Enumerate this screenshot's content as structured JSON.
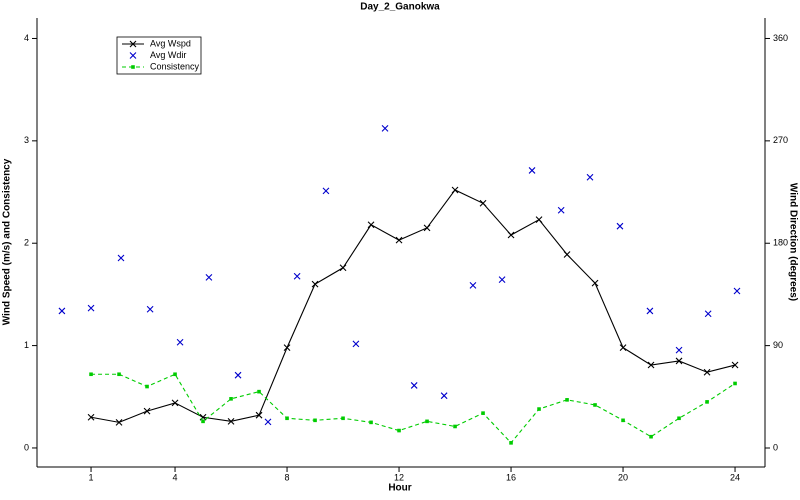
{
  "chart_data": {
    "type": "line",
    "title": "Day_2_Ganokwa",
    "x_label": "Hour",
    "y_label": "Wind Speed (m/s) and Consistency",
    "y2_label": "Wind Direction (degrees)",
    "x": [
      1,
      2,
      3,
      4,
      5,
      6,
      7,
      8,
      9,
      10,
      11,
      12,
      13,
      14,
      15,
      16,
      17,
      18,
      19,
      20,
      21,
      22,
      23,
      24
    ],
    "xlim": [
      -0.93,
      25.07
    ],
    "xticks": [
      1,
      4,
      8,
      12,
      16,
      20,
      24
    ],
    "ylim": [
      -0.186,
      4.2
    ],
    "yticks": [
      0,
      1,
      2,
      3,
      4
    ],
    "y2lim": [
      -16.7,
      378
    ],
    "y2ticks": [
      0,
      90,
      180,
      270,
      360
    ],
    "grid": false,
    "legend": "top-left",
    "series": [
      {
        "name": "Avg Wspd",
        "color": "#000000",
        "mode": "lines+markers",
        "marker": "x",
        "dash": "solid",
        "values": [
          0.3,
          0.25,
          0.36,
          0.44,
          0.3,
          0.26,
          0.32,
          0.98,
          1.6,
          1.76,
          2.18,
          2.03,
          2.15,
          2.52,
          2.39,
          2.08,
          2.23,
          1.89,
          1.61,
          0.98,
          0.81,
          0.85,
          0.74,
          0.81
        ]
      },
      {
        "name": "Avg Wdir",
        "color": "#0000cc",
        "mode": "markers",
        "marker": "x",
        "axis": "y2",
        "x": [
          -0.04,
          1.0,
          2.07,
          3.11,
          4.18,
          5.21,
          6.25,
          7.32,
          8.36,
          9.39,
          10.46,
          11.5,
          12.54,
          13.61,
          14.64,
          15.68,
          16.75,
          17.79,
          18.82,
          19.89,
          20.96,
          22.0,
          23.04,
          24.07
        ],
        "values": [
          120.5,
          123,
          167,
          122,
          93,
          150,
          64,
          23,
          151,
          226,
          91.5,
          281,
          55,
          46,
          143,
          148,
          244,
          209,
          238,
          195,
          120.5,
          86,
          118,
          138
        ]
      },
      {
        "name": "Consistency",
        "color": "#00cc00",
        "mode": "lines+markers",
        "marker": "square",
        "dash": "dashed",
        "values": [
          0.72,
          0.72,
          0.6,
          0.72,
          0.26,
          0.48,
          0.55,
          0.29,
          0.27,
          0.29,
          0.25,
          0.17,
          0.26,
          0.21,
          0.34,
          0.05,
          0.38,
          0.47,
          0.42,
          0.27,
          0.11,
          0.29,
          0.45,
          0.63
        ]
      }
    ]
  }
}
